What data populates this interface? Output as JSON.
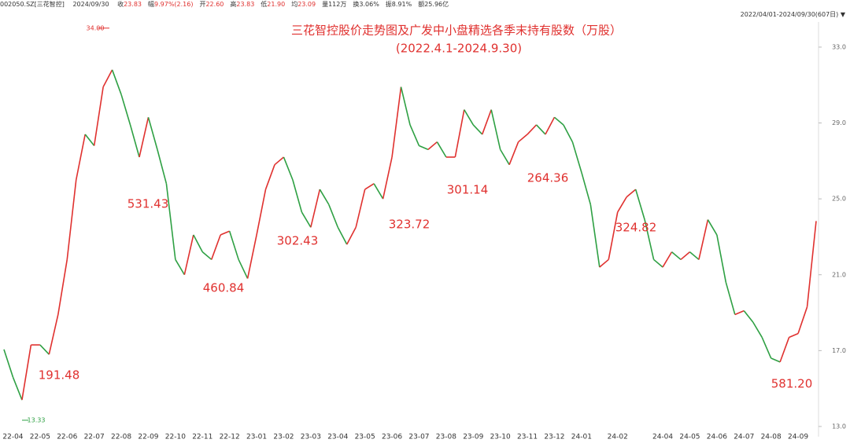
{
  "header": {
    "code": "002050.SZ[三花智控]",
    "date": "2024/09/30",
    "items": [
      {
        "label": "收",
        "value": "23.83",
        "color": "#e0312f"
      },
      {
        "label": "幅",
        "value": "9.97%(2.16)",
        "color": "#e0312f"
      },
      {
        "label": "开",
        "value": "22.60",
        "color": "#e0312f"
      },
      {
        "label": "高",
        "value": "23.83",
        "color": "#e0312f"
      },
      {
        "label": "低",
        "value": "21.90",
        "color": "#e0312f"
      },
      {
        "label": "均",
        "value": "23.09",
        "color": "#e0312f"
      },
      {
        "label": "量",
        "value": "112万",
        "color": "#333333"
      },
      {
        "label": "换",
        "value": "3.06%",
        "color": "#333333"
      },
      {
        "label": "振",
        "value": "8.91%",
        "color": "#333333"
      },
      {
        "label": "额",
        "value": "25.96亿",
        "color": "#333333"
      }
    ],
    "range": "2022/04/01-2024/09/30(607日)"
  },
  "chart_data": {
    "type": "line",
    "title": "三花智控股价走势图及广发中小盘精选各季末持有股数（万股）",
    "subtitle": "(2022.4.1-2024.9.30)",
    "categories": [
      null,
      "22-04",
      null,
      null,
      "22-05",
      null,
      null,
      "22-06",
      null,
      null,
      "22-07",
      null,
      null,
      "22-08",
      null,
      null,
      "22-09",
      null,
      null,
      "22-10",
      null,
      null,
      "22-11",
      null,
      null,
      "22-12",
      null,
      null,
      "23-01",
      null,
      null,
      "23-02",
      null,
      null,
      "23-03",
      null,
      null,
      "23-04",
      null,
      null,
      "23-05",
      null,
      null,
      "23-06",
      null,
      null,
      "23-07",
      null,
      null,
      "23-08",
      null,
      null,
      "23-09",
      null,
      null,
      "23-10",
      null,
      null,
      "23-11",
      null,
      null,
      "23-12",
      null,
      null,
      "24-01",
      null,
      null,
      null,
      "24-02",
      null,
      null,
      null,
      null,
      "24-04",
      null,
      null,
      "24-05",
      null,
      null,
      "24-06",
      null,
      null,
      "24-07",
      null,
      null,
      "24-08",
      null,
      null,
      "24-09",
      null,
      null
    ],
    "series": [
      {
        "name": "股价",
        "up_color": "#e0312f",
        "down_color": "#2ea043",
        "values": [
          17.06,
          15.6,
          14.4,
          17.3,
          17.3,
          16.8,
          18.9,
          21.8,
          26.0,
          28.4,
          27.8,
          30.9,
          31.8,
          30.5,
          28.9,
          27.2,
          29.3,
          27.6,
          25.8,
          21.8,
          21.0,
          23.1,
          22.2,
          21.8,
          23.1,
          23.3,
          21.8,
          20.8,
          23.1,
          25.5,
          26.8,
          27.2,
          26.0,
          24.3,
          23.5,
          25.5,
          24.7,
          23.5,
          22.6,
          23.5,
          25.5,
          25.8,
          25.0,
          27.2,
          30.9,
          28.9,
          27.8,
          27.6,
          28.0,
          27.2,
          27.2,
          29.7,
          28.9,
          28.4,
          29.7,
          27.6,
          26.8,
          28.0,
          28.4,
          28.9,
          28.4,
          29.3,
          28.9,
          28.0,
          26.4,
          24.7,
          21.4,
          21.8,
          24.3,
          25.1,
          25.5,
          23.9,
          21.8,
          21.4,
          22.2,
          21.8,
          22.2,
          21.8,
          23.9,
          23.1,
          20.6,
          18.9,
          19.1,
          18.5,
          17.7,
          16.6,
          16.4,
          17.7,
          17.9,
          19.3,
          23.83
        ]
      }
    ],
    "ylim": [
      12.46,
      34.24
    ],
    "yticks": [
      {
        "value": 13,
        "label": "13.0"
      },
      {
        "value": 17,
        "label": "17.0"
      },
      {
        "value": 21,
        "label": "21.0"
      },
      {
        "value": 25,
        "label": "25.0"
      },
      {
        "value": 29,
        "label": "29.0"
      },
      {
        "value": 33,
        "label": "33.0"
      }
    ],
    "high": {
      "value": 34,
      "label": "34.00"
    },
    "low": {
      "value": 13.33,
      "label": "13.33"
    },
    "holdings": {
      "values": [
        191.48,
        531.43,
        460.84,
        302.43,
        323.72,
        301.14,
        264.36,
        324.82,
        581.2
      ],
      "value_labels": [
        "191.48",
        "531.43",
        "460.84",
        "302.43",
        "323.72",
        "301.14",
        "264.36",
        "324.82",
        "581.20"
      ]
    },
    "grid": false
  }
}
